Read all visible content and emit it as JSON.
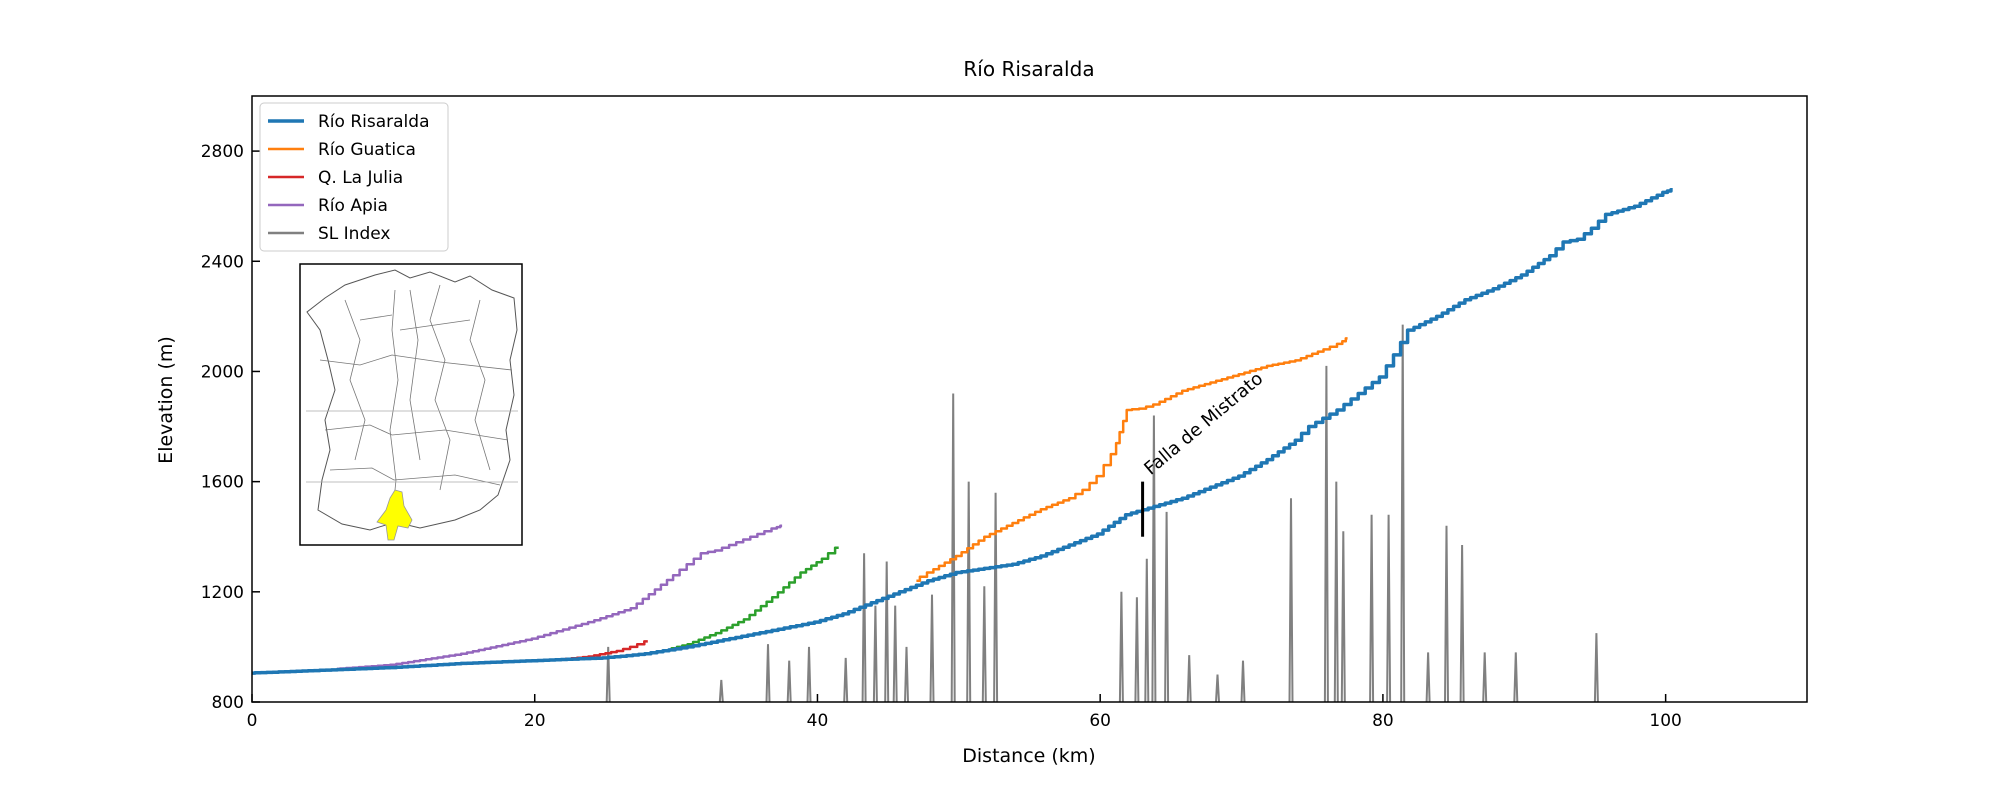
{
  "chart_data": {
    "type": "line",
    "title": "Río Risaralda",
    "xlabel": "Distance (km)",
    "ylabel": "Elevation (m)",
    "xlim": [
      0,
      110
    ],
    "ylim": [
      800,
      3000
    ],
    "xticks": [
      0,
      20,
      40,
      60,
      80,
      100
    ],
    "yticks": [
      800,
      1200,
      1600,
      2000,
      2400,
      2800
    ],
    "grid": false,
    "legend_position": "top-left",
    "series": [
      {
        "name": "Río Risaralda",
        "color": "#1f77b4",
        "x": [
          0,
          5,
          10,
          15,
          20,
          25,
          28,
          31,
          34,
          37,
          40,
          42,
          44,
          46,
          48,
          50,
          52,
          54,
          56,
          58,
          60,
          62,
          64,
          66,
          68,
          70,
          72,
          74,
          75,
          76,
          77,
          78,
          79,
          80,
          81,
          82,
          84,
          86,
          88,
          90,
          92,
          93,
          94,
          95,
          96,
          98,
          100,
          100.5
        ],
        "y": [
          905,
          915,
          925,
          940,
          950,
          960,
          975,
          1000,
          1030,
          1060,
          1090,
          1120,
          1160,
          1200,
          1240,
          1270,
          1285,
          1300,
          1330,
          1370,
          1410,
          1480,
          1510,
          1540,
          1580,
          1620,
          1680,
          1750,
          1800,
          1830,
          1860,
          1900,
          1940,
          1980,
          2060,
          2150,
          2200,
          2260,
          2300,
          2350,
          2420,
          2470,
          2480,
          2520,
          2570,
          2600,
          2650,
          2660
        ]
      },
      {
        "name": "Río Guatica",
        "color": "#ff7f0e",
        "x": [
          47,
          48,
          50,
          52,
          54,
          56,
          58,
          59,
          60,
          61,
          61.5,
          62,
          63,
          64,
          66,
          68,
          70,
          72,
          74,
          76,
          77,
          77.5
        ],
        "y": [
          1240,
          1270,
          1330,
          1400,
          1450,
          1500,
          1540,
          1570,
          1620,
          1700,
          1780,
          1860,
          1865,
          1880,
          1930,
          1960,
          1990,
          2020,
          2040,
          2080,
          2100,
          2120
        ]
      },
      {
        "name": "Q. La Julia",
        "color": "#d62728",
        "x": [
          22,
          24,
          26,
          27,
          28
        ],
        "y": [
          955,
          965,
          985,
          1000,
          1020
        ]
      },
      {
        "name": "",
        "color": "#2ca02c",
        "x": [
          29.5,
          31,
          33,
          35,
          37,
          39,
          40.5,
          41.5
        ],
        "y": [
          990,
          1010,
          1050,
          1100,
          1180,
          1270,
          1320,
          1360
        ]
      },
      {
        "name": "Río Apia",
        "color": "#9467bd",
        "x": [
          6,
          10,
          15,
          20,
          24,
          27,
          30,
          31,
          32,
          33,
          34,
          35,
          36,
          37,
          37.5
        ],
        "y": [
          920,
          935,
          975,
          1030,
          1090,
          1140,
          1260,
          1300,
          1340,
          1350,
          1370,
          1390,
          1410,
          1430,
          1440
        ]
      },
      {
        "name": "SL Index",
        "color": "#808080",
        "spikes": [
          [
            25.2,
            1000
          ],
          [
            33.2,
            880
          ],
          [
            36.5,
            1010
          ],
          [
            38,
            950
          ],
          [
            39.4,
            1000
          ],
          [
            42,
            960
          ],
          [
            43.3,
            1340
          ],
          [
            44.1,
            1150
          ],
          [
            44.9,
            1310
          ],
          [
            45.5,
            1150
          ],
          [
            46.3,
            1000
          ],
          [
            48.1,
            1190
          ],
          [
            49.6,
            1920
          ],
          [
            50.7,
            1600
          ],
          [
            51.8,
            1220
          ],
          [
            52.6,
            1560
          ],
          [
            61.5,
            1200
          ],
          [
            62.6,
            1180
          ],
          [
            63.3,
            1320
          ],
          [
            63.8,
            1840
          ],
          [
            64.7,
            1490
          ],
          [
            66.3,
            970
          ],
          [
            68.3,
            900
          ],
          [
            70.1,
            950
          ],
          [
            73.5,
            1540
          ],
          [
            76,
            2020
          ],
          [
            76.7,
            1600
          ],
          [
            77.2,
            1420
          ],
          [
            79.2,
            1480
          ],
          [
            80.4,
            1480
          ],
          [
            81.4,
            2170
          ],
          [
            83.2,
            980
          ],
          [
            84.5,
            1440
          ],
          [
            85.6,
            1370
          ],
          [
            87.2,
            980
          ],
          [
            89.4,
            980
          ],
          [
            95.1,
            1050
          ]
        ]
      }
    ],
    "annotations": [
      {
        "text": "Falla de Mistrato",
        "x": 63,
        "y": 1600
      }
    ]
  }
}
